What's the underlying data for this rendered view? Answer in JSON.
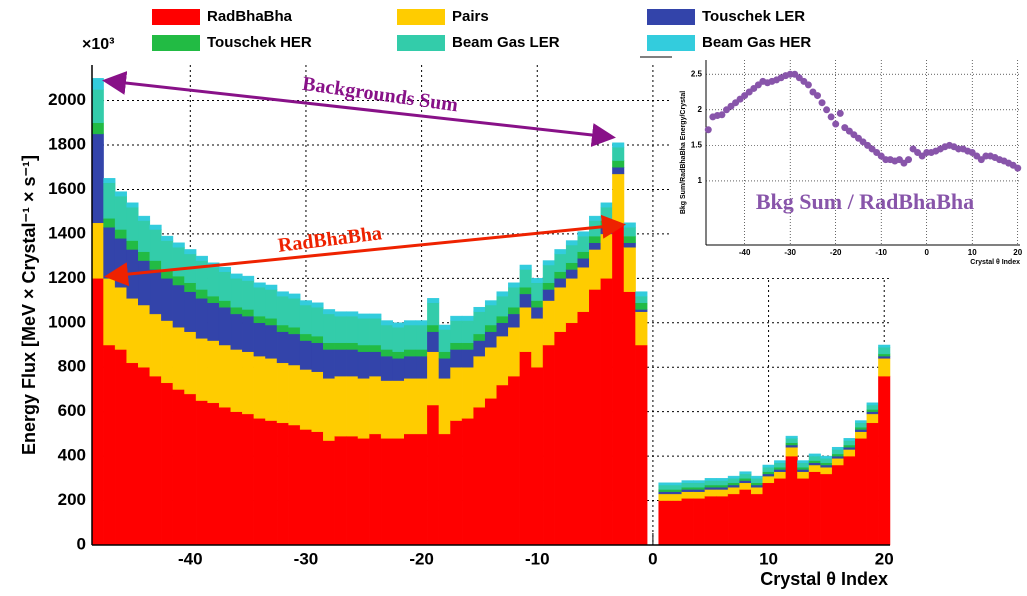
{
  "chart_data": [
    {
      "type": "bar",
      "stacked": true,
      "y_label": "Energy Flux  [MeV × Crystal⁻¹ × s⁻¹]",
      "y_multiplier": "×10³",
      "x_label": "Crystal θ Index",
      "annotations": [
        "Backgrounds Sum",
        "RadBhaBha"
      ],
      "xlim": [
        -48.5,
        20.5
      ],
      "xticks": [
        -40,
        -30,
        -20,
        -10,
        0,
        10,
        20
      ],
      "ylim": [
        0,
        2160
      ],
      "yticks": [
        0,
        200,
        400,
        600,
        800,
        1000,
        1200,
        1400,
        1600,
        1800,
        2000
      ],
      "grid": true,
      "x": [
        -48,
        -47,
        -46,
        -45,
        -44,
        -43,
        -42,
        -41,
        -40,
        -39,
        -38,
        -37,
        -36,
        -35,
        -34,
        -33,
        -32,
        -31,
        -30,
        -29,
        -28,
        -27,
        -26,
        -25,
        -24,
        -23,
        -22,
        -21,
        -20,
        -19,
        -18,
        -17,
        -16,
        -15,
        -14,
        -13,
        -12,
        -11,
        -10,
        -9,
        -8,
        -7,
        -6,
        -5,
        -4,
        -3,
        -2,
        -1,
        0,
        1,
        2,
        3,
        4,
        5,
        6,
        7,
        8,
        9,
        10,
        11,
        12,
        13,
        14,
        15,
        16,
        17,
        18,
        19,
        20
      ],
      "series": [
        {
          "name": "RadBhaBha",
          "color": "#ff0000",
          "values": [
            1200,
            900,
            880,
            820,
            800,
            760,
            730,
            700,
            680,
            650,
            640,
            620,
            600,
            590,
            570,
            560,
            550,
            540,
            520,
            510,
            470,
            490,
            490,
            480,
            500,
            480,
            480,
            500,
            500,
            630,
            500,
            560,
            570,
            620,
            660,
            720,
            760,
            870,
            800,
            900,
            960,
            1000,
            1050,
            1150,
            1200,
            1440,
            1140,
            900,
            null,
            200,
            200,
            210,
            210,
            220,
            220,
            230,
            250,
            230,
            280,
            300,
            400,
            300,
            330,
            320,
            360,
            400,
            480,
            550,
            760
          ]
        },
        {
          "name": "Pairs",
          "color": "#ffcc00",
          "values": [
            250,
            300,
            280,
            290,
            280,
            280,
            280,
            280,
            280,
            280,
            280,
            280,
            280,
            280,
            280,
            280,
            270,
            270,
            270,
            270,
            280,
            270,
            270,
            270,
            260,
            260,
            260,
            250,
            250,
            240,
            250,
            240,
            230,
            230,
            230,
            220,
            220,
            200,
            220,
            200,
            200,
            200,
            200,
            180,
            200,
            230,
            200,
            150,
            null,
            30,
            30,
            30,
            30,
            30,
            30,
            30,
            30,
            30,
            30,
            30,
            40,
            30,
            30,
            30,
            30,
            30,
            30,
            40,
            80
          ]
        },
        {
          "name": "Touschek LER",
          "color": "#3344aa",
          "values": [
            400,
            230,
            220,
            220,
            200,
            200,
            190,
            190,
            180,
            180,
            170,
            170,
            160,
            160,
            150,
            150,
            140,
            140,
            130,
            130,
            130,
            120,
            120,
            120,
            110,
            110,
            100,
            100,
            100,
            90,
            90,
            80,
            80,
            70,
            70,
            60,
            60,
            60,
            50,
            50,
            40,
            40,
            40,
            30,
            30,
            30,
            20,
            10,
            null,
            10,
            10,
            10,
            10,
            10,
            10,
            10,
            10,
            10,
            10,
            10,
            10,
            10,
            10,
            10,
            10,
            10,
            10,
            10,
            10
          ]
        },
        {
          "name": "Touschek HER",
          "color": "#22bb44",
          "values": [
            50,
            40,
            40,
            40,
            40,
            40,
            40,
            40,
            40,
            40,
            30,
            30,
            30,
            30,
            30,
            30,
            30,
            30,
            30,
            30,
            30,
            30,
            30,
            30,
            30,
            30,
            30,
            30,
            30,
            30,
            30,
            30,
            30,
            30,
            30,
            30,
            30,
            30,
            30,
            30,
            30,
            30,
            30,
            30,
            30,
            30,
            30,
            30,
            null,
            10,
            10,
            10,
            10,
            10,
            10,
            10,
            10,
            10,
            10,
            10,
            10,
            10,
            10,
            10,
            10,
            10,
            10,
            10,
            10
          ]
        },
        {
          "name": "Beam Gas LER",
          "color": "#33ccaa",
          "values": [
            150,
            160,
            150,
            150,
            140,
            140,
            130,
            130,
            130,
            130,
            130,
            130,
            130,
            130,
            130,
            130,
            130,
            130,
            130,
            130,
            130,
            120,
            120,
            120,
            120,
            110,
            110,
            110,
            110,
            100,
            100,
            100,
            100,
            100,
            90,
            90,
            90,
            80,
            80,
            80,
            80,
            80,
            70,
            70,
            60,
            60,
            40,
            30,
            null,
            20,
            20,
            20,
            20,
            20,
            20,
            20,
            20,
            20,
            20,
            20,
            20,
            20,
            20,
            20,
            20,
            20,
            20,
            20,
            30
          ]
        },
        {
          "name": "Beam Gas HER",
          "color": "#33ccdd",
          "values": [
            50,
            20,
            20,
            20,
            20,
            20,
            20,
            20,
            20,
            20,
            20,
            20,
            20,
            20,
            20,
            20,
            20,
            20,
            20,
            20,
            20,
            20,
            20,
            20,
            20,
            20,
            20,
            20,
            20,
            20,
            20,
            20,
            20,
            20,
            20,
            20,
            20,
            20,
            20,
            20,
            20,
            20,
            20,
            20,
            20,
            20,
            20,
            20,
            null,
            10,
            10,
            10,
            10,
            10,
            10,
            10,
            10,
            10,
            10,
            10,
            10,
            10,
            10,
            10,
            10,
            10,
            10,
            10,
            10
          ]
        }
      ]
    },
    {
      "type": "scatter",
      "annotation": "Bkg Sum / RadBhaBha",
      "y_label": "Bkg Sum/RadBhaBha Energy/Crystal",
      "x_label": "Crystal θ Index",
      "xlim": [
        -48.5,
        20.5
      ],
      "xticks": [
        -40,
        -30,
        -20,
        -10,
        0,
        10,
        20
      ],
      "ylim": [
        0.1,
        2.7
      ],
      "yticks": [
        1,
        1.5,
        2,
        2.5
      ],
      "grid": true,
      "color": "#8855aa",
      "x": [
        -48,
        -47,
        -46,
        -45,
        -44,
        -43,
        -42,
        -41,
        -40,
        -39,
        -38,
        -37,
        -36,
        -35,
        -34,
        -33,
        -32,
        -31,
        -30,
        -29,
        -28,
        -27,
        -26,
        -25,
        -24,
        -23,
        -22,
        -21,
        -20,
        -19,
        -18,
        -17,
        -16,
        -15,
        -14,
        -13,
        -12,
        -11,
        -10,
        -9,
        -8,
        -7,
        -6,
        -5,
        -4,
        -3,
        -2,
        -1,
        0,
        1,
        2,
        3,
        4,
        5,
        6,
        7,
        8,
        9,
        10,
        11,
        12,
        13,
        14,
        15,
        16,
        17,
        18,
        19,
        20
      ],
      "values": [
        1.72,
        1.9,
        1.92,
        1.93,
        2.0,
        2.05,
        2.1,
        2.15,
        2.2,
        2.25,
        2.3,
        2.35,
        2.4,
        2.38,
        2.4,
        2.42,
        2.45,
        2.48,
        2.5,
        2.5,
        2.45,
        2.4,
        2.35,
        2.25,
        2.2,
        2.1,
        2.0,
        1.9,
        1.8,
        1.95,
        1.75,
        1.7,
        1.65,
        1.6,
        1.55,
        1.5,
        1.45,
        1.4,
        1.35,
        1.3,
        1.3,
        1.28,
        1.3,
        1.25,
        1.3,
        1.45,
        1.4,
        1.35,
        1.4,
        1.4,
        1.42,
        1.45,
        1.48,
        1.5,
        1.48,
        1.45,
        1.45,
        1.42,
        1.4,
        1.35,
        1.3,
        1.35,
        1.35,
        1.33,
        1.3,
        1.28,
        1.25,
        1.22,
        1.18
      ]
    }
  ]
}
